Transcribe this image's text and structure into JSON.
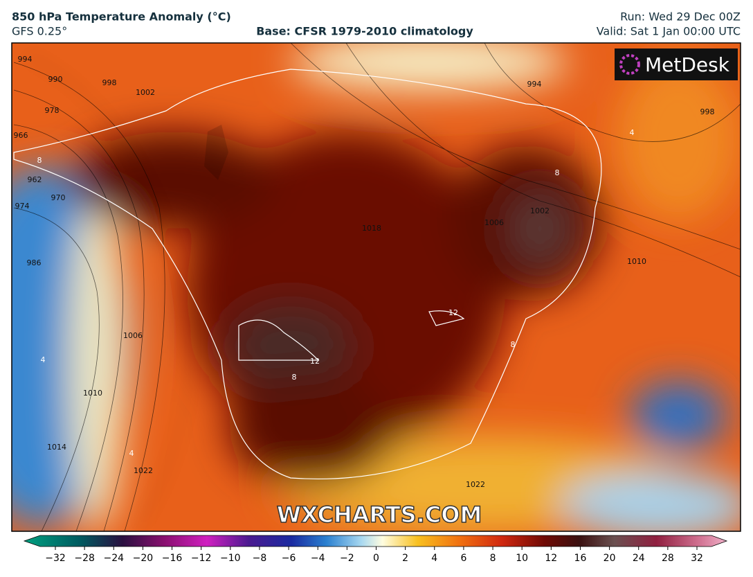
{
  "header": {
    "title": "850 hPa Temperature Anomaly (°C)",
    "model": "GFS 0.25°",
    "base": "Base: CFSR 1979-2010 climatology",
    "run": "Run: Wed 29 Dec 00Z",
    "valid": "Valid: Sat 1 Jan 00:00 UTC"
  },
  "logo": "MetDesk",
  "watermark": "WXCHARTS.COM",
  "contour_labels": [
    "994",
    "990",
    "998",
    "1002",
    "978",
    "966",
    "962",
    "970",
    "974",
    "986",
    "1006",
    "1010",
    "1014",
    "1022",
    "1018",
    "1006",
    "1002",
    "1010",
    "998",
    "994",
    "1022",
    "8",
    "8",
    "12",
    "12",
    "8",
    "8",
    "4",
    "4",
    "4"
  ],
  "colorbar": {
    "ticks": [
      {
        "value": -32,
        "label": "−32"
      },
      {
        "value": -28,
        "label": "−28"
      },
      {
        "value": -24,
        "label": "−24"
      },
      {
        "value": -20,
        "label": "−20"
      },
      {
        "value": -16,
        "label": "−16"
      },
      {
        "value": -12,
        "label": "−12"
      },
      {
        "value": -10,
        "label": "−10"
      },
      {
        "value": -8,
        "label": "−8"
      },
      {
        "value": -6,
        "label": "−6"
      },
      {
        "value": -4,
        "label": "−4"
      },
      {
        "value": -2,
        "label": "−2"
      },
      0,
      2,
      4,
      6,
      8,
      10,
      12,
      16,
      20,
      24,
      28,
      32
    ]
  }
}
